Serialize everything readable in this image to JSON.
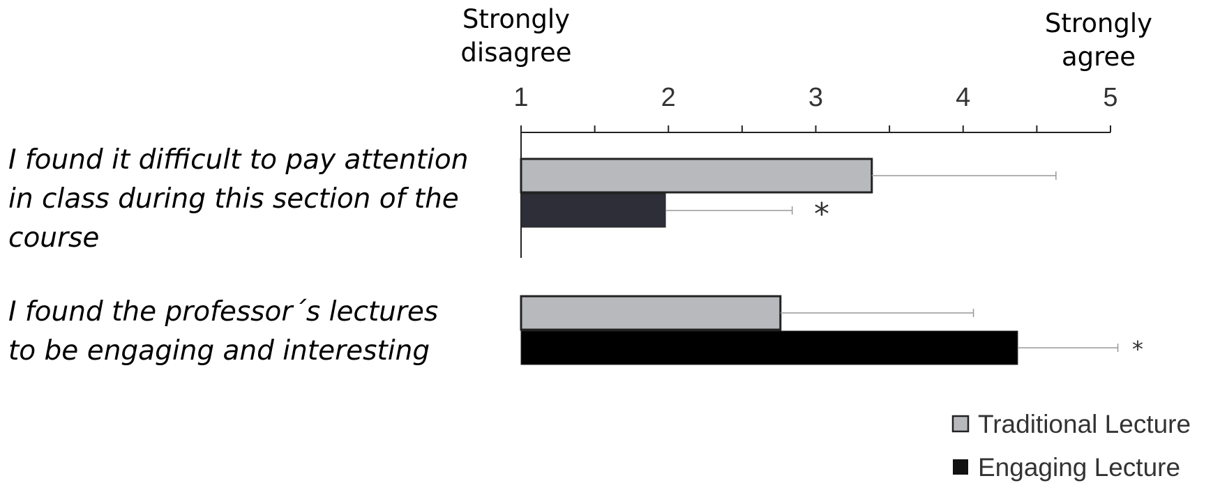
{
  "chart_data": {
    "type": "bar",
    "orientation": "horizontal",
    "scale_labels": {
      "min": "Strongly\ndisagree",
      "max": "Strongly\nagree"
    },
    "x_ticks": [
      "1",
      "2",
      "3",
      "4",
      "5"
    ],
    "xlim": [
      1,
      5
    ],
    "categories": [
      "I found it difficult to pay attention\nin class during this section of the\ncourse",
      "I found the professor´s lectures\nto be engaging and interesting"
    ],
    "series": [
      {
        "name": "Traditional Lecture",
        "color": "#b8b9bc",
        "values": [
          3.38,
          2.76
        ],
        "error_upper": [
          4.63,
          4.07
        ]
      },
      {
        "name": "Engaging Lecture",
        "colors": [
          "#2d2e37",
          "#000000"
        ],
        "values": [
          1.98,
          4.37
        ],
        "error_upper": [
          2.84,
          5.05
        ]
      }
    ],
    "significance_markers": [
      "*",
      "*"
    ],
    "legend_position": "bottom-right",
    "grid": false
  }
}
